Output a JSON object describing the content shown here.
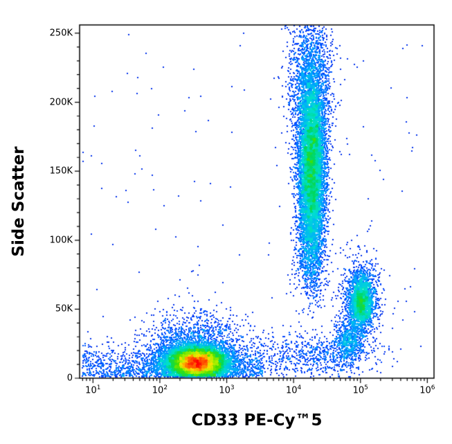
{
  "figure": {
    "background": "#ffffff",
    "axis_color": "#000000"
  },
  "chart_data": {
    "type": "scatter",
    "subtype": "flow-cytometry-pseudocolor-density-dot-plot",
    "title": "",
    "xlabel": "CD33 PE-Cy™5",
    "ylabel": "Side Scatter",
    "x_scale": "log",
    "x_log_range": [
      0.8,
      6.1
    ],
    "y_scale": "linear",
    "y_range": [
      0,
      256000
    ],
    "grid": false,
    "legend": false,
    "point_size": 2,
    "density_gamma": 0.45,
    "x_ticks": [
      {
        "base": "10",
        "sup": "1",
        "log": 1
      },
      {
        "base": "10",
        "sup": "2",
        "log": 2
      },
      {
        "base": "10",
        "sup": "3",
        "log": 3
      },
      {
        "base": "10",
        "sup": "4",
        "log": 4
      },
      {
        "base": "10",
        "sup": "5",
        "log": 5
      },
      {
        "base": "10",
        "sup": "6",
        "log": 6
      }
    ],
    "y_ticks": [
      {
        "label": "0",
        "value": 0
      },
      {
        "label": "50K",
        "value": 50000
      },
      {
        "label": "100K",
        "value": 100000
      },
      {
        "label": "150K",
        "value": 150000
      },
      {
        "label": "200K",
        "value": 200000
      },
      {
        "label": "250K",
        "value": 250000
      }
    ],
    "colormap": [
      [
        0.0,
        "#0000b4"
      ],
      [
        0.15,
        "#0040ff"
      ],
      [
        0.3,
        "#00a8ff"
      ],
      [
        0.42,
        "#00e0d0"
      ],
      [
        0.52,
        "#00d860"
      ],
      [
        0.62,
        "#44e000"
      ],
      [
        0.72,
        "#b0f000"
      ],
      [
        0.8,
        "#ffe000"
      ],
      [
        0.88,
        "#ff8000"
      ],
      [
        1.0,
        "#ff0000"
      ]
    ],
    "populations": [
      {
        "name": "lymphocytes-core",
        "dist": "gauss",
        "count": 11000,
        "x_log_mean": 2.56,
        "x_log_sd": 0.22,
        "y_mean": 11000,
        "y_sd": 5800
      },
      {
        "name": "lymphocytes-halo",
        "dist": "gauss",
        "count": 2500,
        "x_log_mean": 2.52,
        "x_log_sd": 0.34,
        "y_mean": 16000,
        "y_sd": 15000
      },
      {
        "name": "granulocytes-core",
        "dist": "gauss",
        "count": 8000,
        "x_log_mean": 4.28,
        "x_log_sd": 0.1,
        "y_mean": 150000,
        "y_sd": 33000
      },
      {
        "name": "granulocytes-upper",
        "dist": "gauss",
        "count": 2000,
        "x_log_mean": 4.26,
        "x_log_sd": 0.16,
        "y_mean": 210000,
        "y_sd": 28000
      },
      {
        "name": "granulocytes-lower-tail",
        "dist": "gauss",
        "count": 600,
        "x_log_mean": 4.24,
        "x_log_sd": 0.12,
        "y_mean": 92000,
        "y_sd": 18000
      },
      {
        "name": "monocytes-core",
        "dist": "gauss",
        "count": 2000,
        "x_log_mean": 5.02,
        "x_log_sd": 0.09,
        "y_mean": 55000,
        "y_sd": 10000
      },
      {
        "name": "monocytes-halo",
        "dist": "gauss",
        "count": 700,
        "x_log_mean": 5.0,
        "x_log_sd": 0.16,
        "y_mean": 58000,
        "y_sd": 16000
      },
      {
        "name": "low-ssc-bridge-band",
        "dist": "gauss",
        "count": 800,
        "x_log_mean": 4.3,
        "x_log_sd": 0.5,
        "y_mean": 16000,
        "y_sd": 9000
      },
      {
        "name": "pre-monocyte-clump",
        "dist": "gauss",
        "count": 600,
        "x_log_mean": 4.82,
        "x_log_sd": 0.1,
        "y_mean": 27000,
        "y_sd": 8000
      },
      {
        "name": "debris",
        "dist": "halfgauss-y",
        "count": 1500,
        "x_log_min": 0.85,
        "x_log_max": 3.55,
        "y_min": 500,
        "y_sd": 11000
      },
      {
        "name": "sparse-noise",
        "dist": "uniform",
        "count": 130,
        "x_log_min": 0.85,
        "x_log_max": 6.0,
        "y_min": 0,
        "y_max": 250000
      }
    ]
  }
}
